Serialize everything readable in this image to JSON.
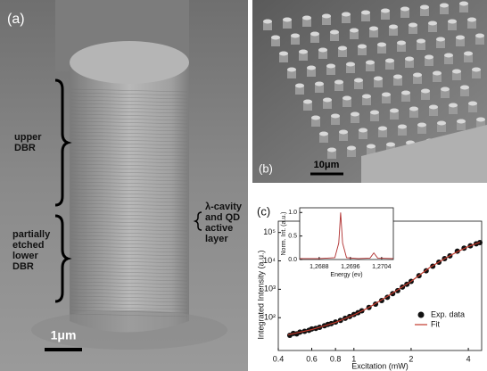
{
  "panel_a": {
    "label": "(a)",
    "upper_dbr": [
      "upper",
      "DBR"
    ],
    "lower_dbr": [
      "partially",
      "etched",
      "lower",
      "DBR"
    ],
    "cavity": [
      "λ-cavity",
      "and QD",
      "active",
      "layer"
    ],
    "scale_bar": "1μm"
  },
  "panel_b": {
    "label": "(b)",
    "scale_bar": "10μm"
  },
  "panel_c": {
    "label": "(c)"
  },
  "chart_data": [
    {
      "type": "scatter",
      "x_label": "Excitation (mW)",
      "y_label": "Integrated Intensity (a.u.)",
      "x_log": true,
      "y_log": true,
      "legend": "lower right",
      "xlim": [
        0.4,
        4.7
      ],
      "xticks": [
        0.4,
        0.6,
        0.8,
        1,
        2,
        4
      ],
      "ylim": [
        7,
        250000
      ],
      "yticks": [
        {
          "value": 100,
          "label": "10²"
        },
        {
          "value": 1000,
          "label": "10³"
        },
        {
          "value": 10000,
          "label": "10⁴"
        },
        {
          "value": 100000,
          "label": "10⁵"
        }
      ],
      "series": [
        {
          "name": "Exp. data",
          "type": "scatter",
          "color": "#111111",
          "x": [
            0.46,
            0.48,
            0.5,
            0.52,
            0.55,
            0.58,
            0.6,
            0.63,
            0.66,
            0.7,
            0.73,
            0.76,
            0.8,
            0.85,
            0.9,
            0.95,
            1.0,
            1.05,
            1.1,
            1.2,
            1.3,
            1.4,
            1.5,
            1.6,
            1.7,
            1.8,
            1.9,
            2.0,
            2.2,
            2.4,
            2.6,
            2.8,
            3.0,
            3.2,
            3.5,
            3.8,
            4.1,
            4.4,
            4.6
          ],
          "values": [
            24,
            28,
            27,
            31,
            33,
            36,
            40,
            42,
            46,
            52,
            58,
            62,
            70,
            80,
            95,
            110,
            130,
            150,
            175,
            230,
            300,
            400,
            520,
            700,
            900,
            1200,
            1500,
            1900,
            3000,
            4500,
            6500,
            9000,
            12000,
            15000,
            22000,
            28000,
            34000,
            40000,
            44000
          ]
        },
        {
          "name": "Fit",
          "type": "line",
          "color": "#c0392b",
          "x": [
            0.45,
            0.5,
            0.6,
            0.7,
            0.8,
            1,
            1.2,
            1.5,
            2,
            2.5,
            3,
            3.5,
            4,
            4.6
          ],
          "values": [
            25,
            29,
            38,
            52,
            68,
            125,
            230,
            560,
            1900,
            5800,
            12000,
            21000,
            32000,
            45000
          ]
        }
      ]
    },
    {
      "type": "line",
      "x_label": "Energy (ev)",
      "y_label": "Norm. Int. (a.u.)",
      "xlim": [
        1.2683,
        1.2707
      ],
      "xticks": [
        {
          "value": 1.2688,
          "label": "1,2688"
        },
        {
          "value": 1.2696,
          "label": "1,2696"
        },
        {
          "value": 1.2704,
          "label": "1,2704"
        }
      ],
      "ylim": [
        0,
        1.1
      ],
      "yticks": [
        {
          "value": 0,
          "label": "0.0"
        },
        {
          "value": 0.5,
          "label": "0.5"
        },
        {
          "value": 1,
          "label": "1.0"
        }
      ],
      "series": [
        {
          "color": "#b03030",
          "x": [
            1.2683,
            1.2688,
            1.2692,
            1.2693,
            1.26935,
            1.2694,
            1.2695,
            1.2698,
            1.2701,
            1.2702,
            1.2703,
            1.2707
          ],
          "values": [
            0.02,
            0.02,
            0.04,
            0.35,
            1.0,
            0.35,
            0.04,
            0.02,
            0.03,
            0.14,
            0.03,
            0.02
          ]
        }
      ]
    }
  ]
}
